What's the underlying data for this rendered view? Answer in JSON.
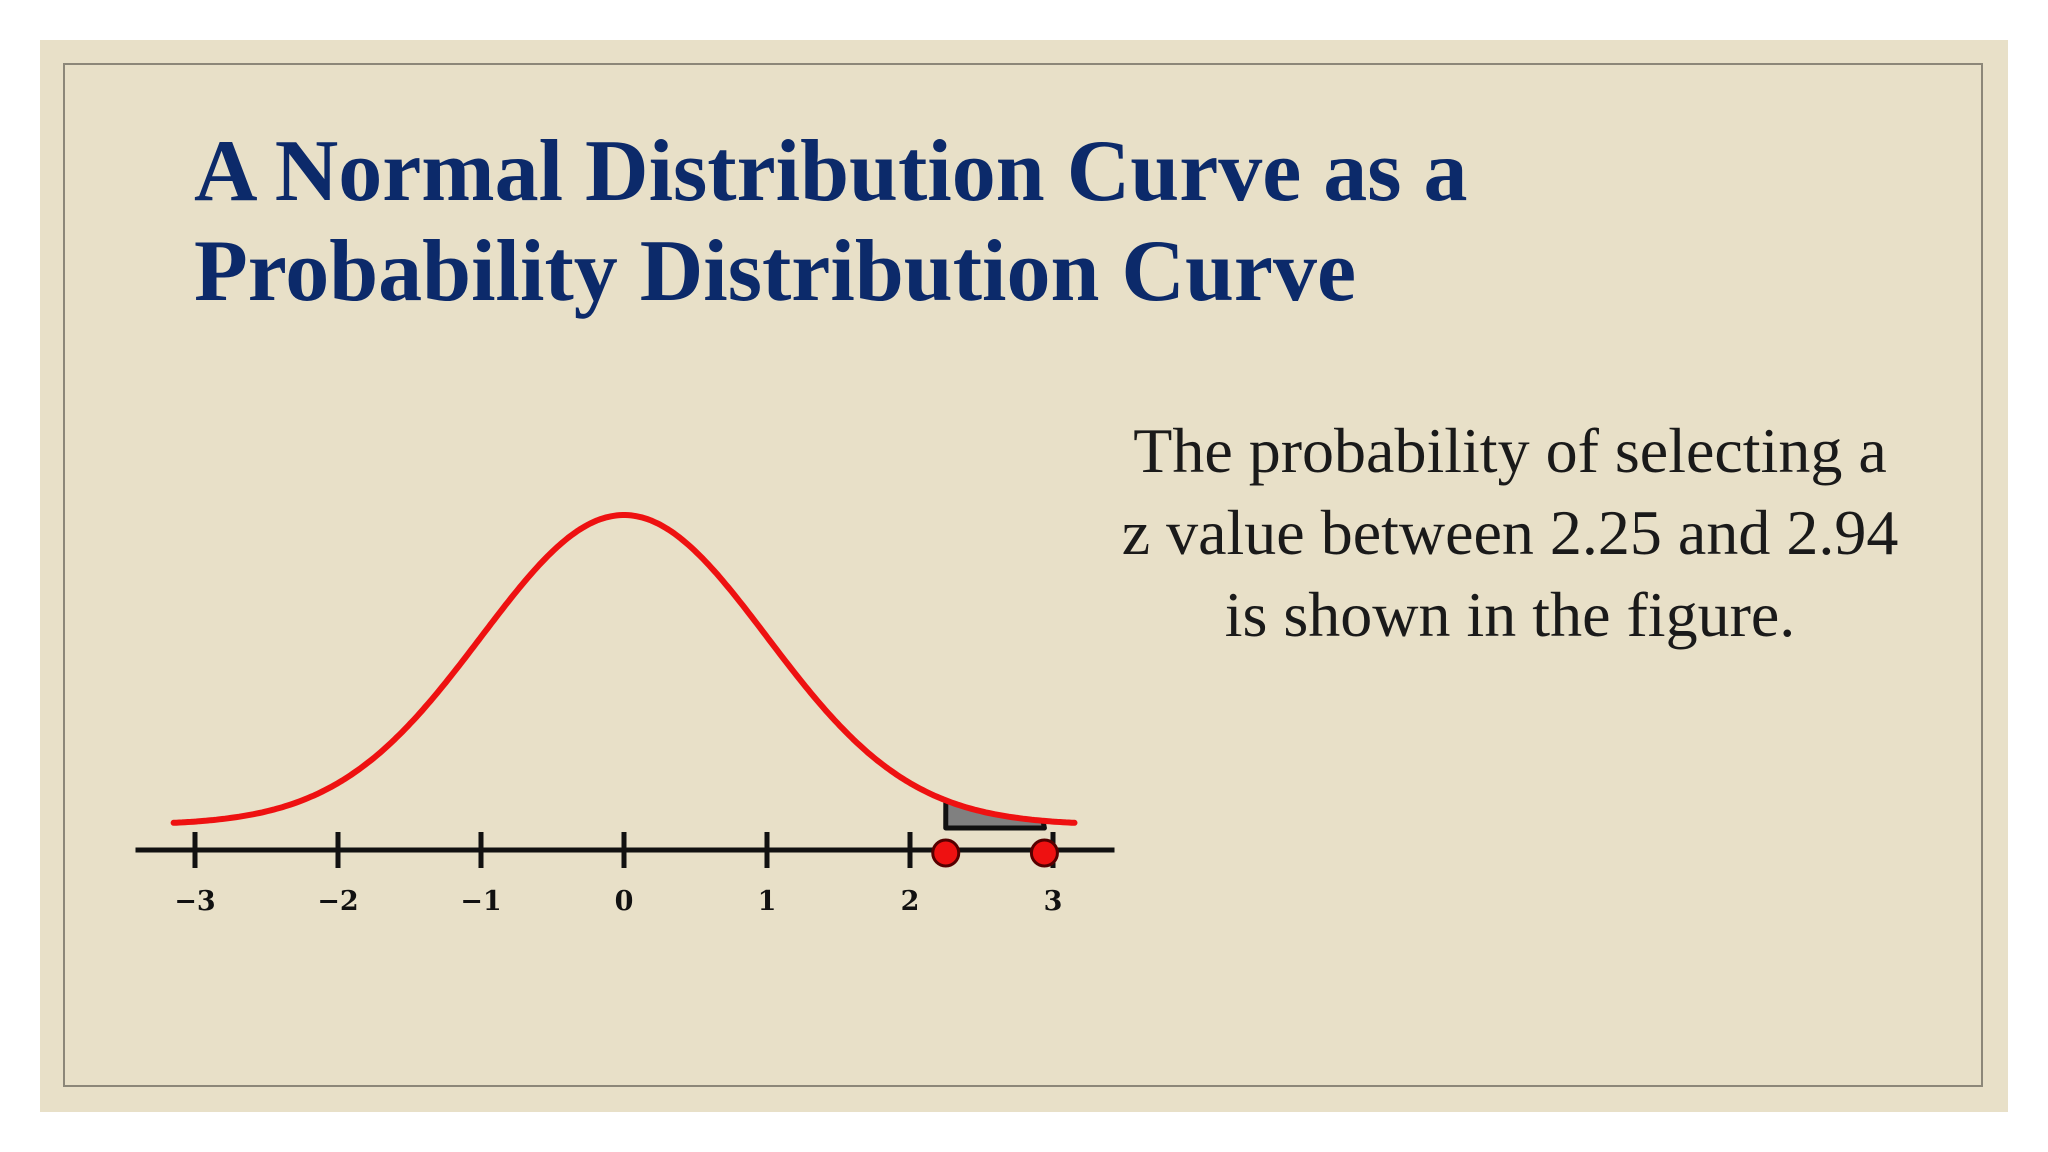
{
  "slide": {
    "title_line1": "A Normal Distribution Curve as a",
    "title_line2": "Probability Distribution Curve",
    "caption_line1": "The probability of  selecting a",
    "caption_line2": "z value between 2.25 and 2.94",
    "caption_line3": "is shown in the figure."
  },
  "colors": {
    "background": "#e8e0c8",
    "title": "#0c2a6a",
    "curve": "#ee1111",
    "shaded_area": "#808080",
    "axis": "#111111",
    "marker": "#ee1111"
  },
  "chart_data": {
    "type": "area",
    "curve": "standard normal density",
    "xlim": [
      -3.5,
      3.5
    ],
    "ticks": [
      {
        "value": -3,
        "label": "−3"
      },
      {
        "value": -2,
        "label": "−2"
      },
      {
        "value": -1,
        "label": "−1"
      },
      {
        "value": 0,
        "label": "0"
      },
      {
        "value": 1,
        "label": "1"
      },
      {
        "value": 2,
        "label": "2"
      },
      {
        "value": 3,
        "label": "3"
      }
    ],
    "shaded_region": {
      "from": 2.25,
      "to": 2.94
    },
    "markers": [
      2.25,
      2.94
    ]
  }
}
